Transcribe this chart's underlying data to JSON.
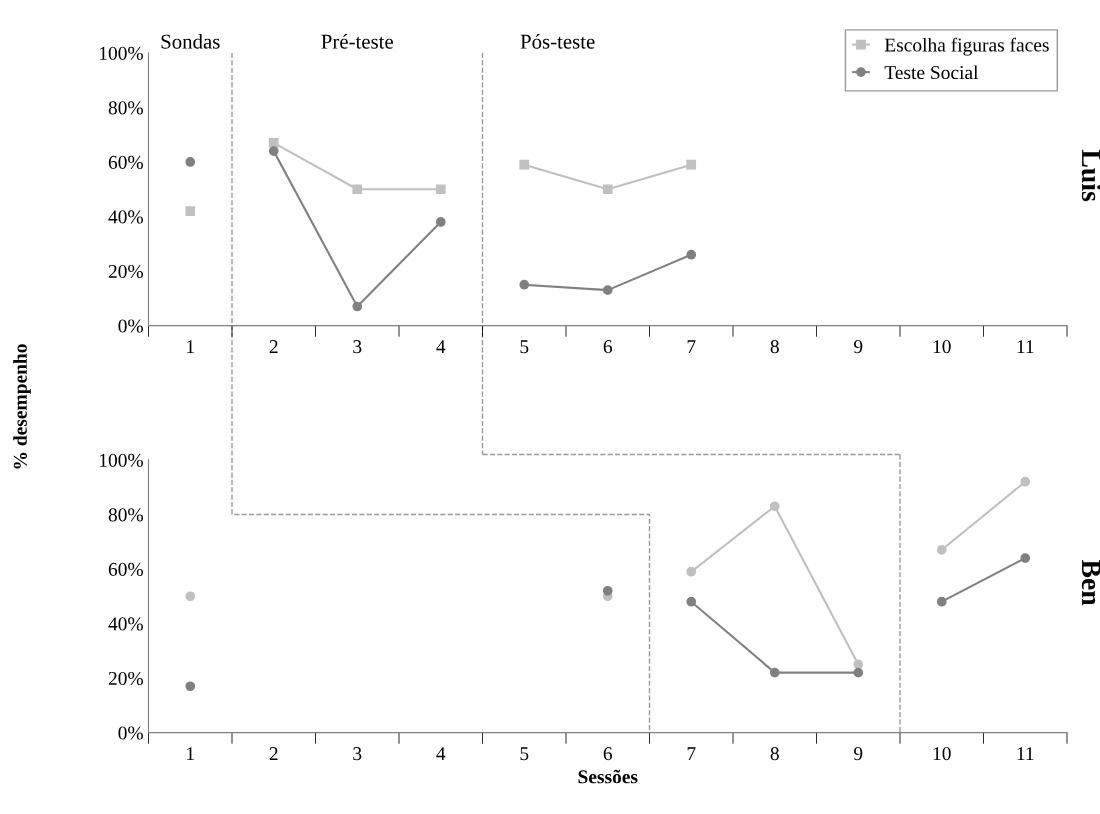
{
  "chart_data": [
    {
      "type": "line",
      "categories": [
        "1",
        "2",
        "3",
        "4",
        "5",
        "6",
        "7",
        "8",
        "9",
        "10",
        "11"
      ],
      "ylim": [
        0,
        100
      ],
      "yticks": [
        {
          "value": 0,
          "label": "0%"
        },
        {
          "value": 20,
          "label": "20%"
        },
        {
          "value": 40,
          "label": "40%"
        },
        {
          "value": 60,
          "label": "60%"
        },
        {
          "value": 80,
          "label": "80%"
        },
        {
          "value": 100,
          "label": "100%"
        }
      ],
      "grid": false,
      "legend": "top right",
      "line_style": "solid",
      "series": [
        {
          "name": "Escolha figuras faces",
          "color": "#c0c0c0",
          "marker": "square",
          "values": [
            null,
            67,
            50,
            50,
            null,
            null,
            null,
            null,
            null,
            null,
            null
          ]
        },
        {
          "color": "#c0c0c0",
          "marker": "square",
          "values": [
            42,
            null,
            null,
            null,
            null,
            null,
            null,
            null,
            null,
            null,
            null
          ]
        },
        {
          "color": "#c0c0c0",
          "marker": "square",
          "values": [
            null,
            null,
            null,
            null,
            59,
            50,
            59,
            null,
            null,
            null,
            null
          ]
        },
        {
          "name": "Teste Social",
          "color": "#808080",
          "marker": "circle",
          "values": [
            null,
            64,
            7,
            38,
            null,
            null,
            null,
            null,
            null,
            null,
            null
          ]
        },
        {
          "color": "#808080",
          "marker": "circle",
          "values": [
            60,
            null,
            null,
            null,
            null,
            null,
            null,
            null,
            null,
            null,
            null
          ]
        },
        {
          "color": "#808080",
          "marker": "circle",
          "values": [
            null,
            null,
            null,
            null,
            15,
            13,
            26,
            null,
            null,
            null,
            null
          ]
        }
      ],
      "annotations": [
        "Sondas",
        "Pré-teste",
        "Pós-teste",
        "Luis"
      ]
    },
    {
      "type": "line",
      "categories": [
        "1",
        "2",
        "3",
        "4",
        "5",
        "6",
        "7",
        "8",
        "9",
        "10",
        "11"
      ],
      "ylim": [
        0,
        100
      ],
      "yticks": [
        {
          "value": 0,
          "label": "0%"
        },
        {
          "value": 20,
          "label": "20%"
        },
        {
          "value": 40,
          "label": "40%"
        },
        {
          "value": 60,
          "label": "60%"
        },
        {
          "value": 80,
          "label": "80%"
        },
        {
          "value": 100,
          "label": "100%"
        }
      ],
      "grid": false,
      "line_style": "solid",
      "xlabel": "Sessões",
      "ylabel": "% desempenho",
      "series": [
        {
          "color": "#c0c0c0",
          "marker": "circle",
          "values": [
            50,
            null,
            null,
            null,
            null,
            50,
            null,
            null,
            null,
            null,
            null
          ]
        },
        {
          "color": "#c0c0c0",
          "marker": "circle",
          "values": [
            null,
            null,
            null,
            null,
            null,
            null,
            59,
            83,
            25,
            null,
            null
          ]
        },
        {
          "color": "#c0c0c0",
          "marker": "circle",
          "values": [
            null,
            null,
            null,
            null,
            null,
            null,
            null,
            null,
            null,
            67,
            92
          ]
        },
        {
          "color": "#808080",
          "marker": "circle",
          "values": [
            17,
            null,
            null,
            null,
            null,
            52,
            null,
            null,
            null,
            null,
            null
          ]
        },
        {
          "color": "#808080",
          "marker": "circle",
          "values": [
            null,
            null,
            null,
            null,
            null,
            null,
            48,
            22,
            22,
            null,
            null
          ]
        },
        {
          "color": "#808080",
          "marker": "circle",
          "values": [
            null,
            null,
            null,
            null,
            null,
            null,
            null,
            null,
            null,
            48,
            64
          ]
        }
      ],
      "annotations": [
        "Ben"
      ]
    }
  ]
}
